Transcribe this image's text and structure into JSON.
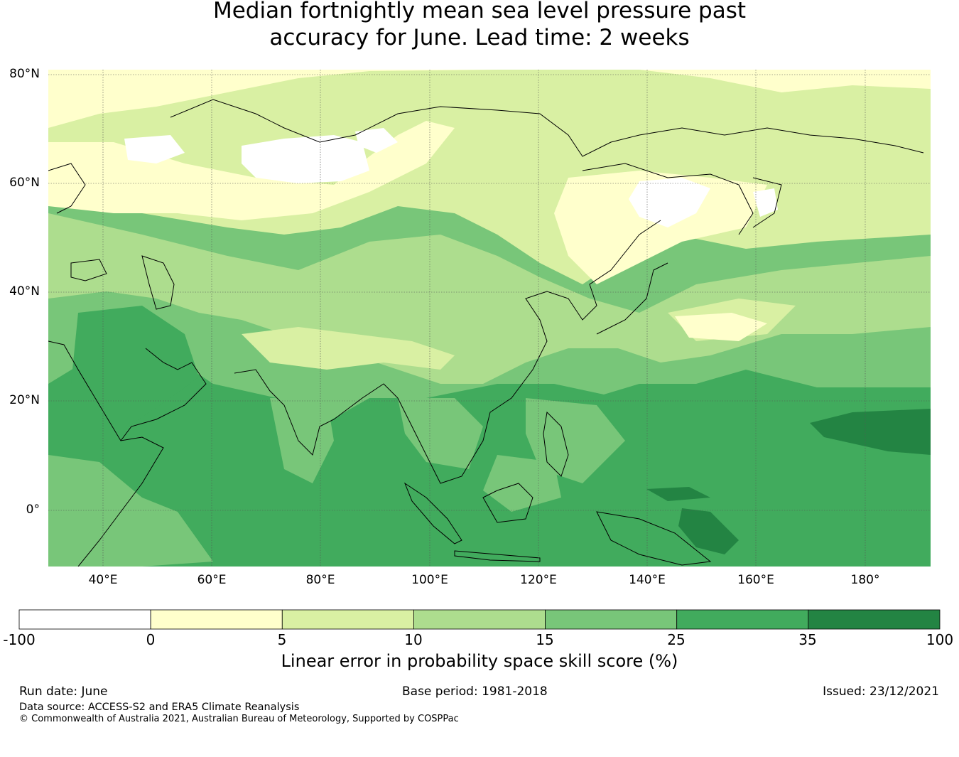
{
  "title": {
    "line1": "Median fortnightly mean sea level pressure past",
    "line2": "accuracy for June. Lead time: 2 weeks"
  },
  "map": {
    "lat_labels": [
      "80°N",
      "60°N",
      "40°N",
      "20°N",
      "0°"
    ],
    "lon_labels": [
      "40°E",
      "60°E",
      "80°E",
      "100°E",
      "120°E",
      "140°E",
      "160°E",
      "180°"
    ]
  },
  "colorbar": {
    "bins": [
      {
        "from": -100,
        "to": 0,
        "color": "#ffffff"
      },
      {
        "from": 0,
        "to": 5,
        "color": "#ffffcc"
      },
      {
        "from": 5,
        "to": 10,
        "color": "#d9f0a3"
      },
      {
        "from": 10,
        "to": 15,
        "color": "#addd8e"
      },
      {
        "from": 15,
        "to": 25,
        "color": "#78c679"
      },
      {
        "from": 25,
        "to": 35,
        "color": "#41ab5d"
      },
      {
        "from": 35,
        "to": 100,
        "color": "#238443"
      }
    ],
    "tick_labels": [
      "-100",
      "0",
      "5",
      "10",
      "15",
      "25",
      "35",
      "100"
    ],
    "label": "Linear error in probability space skill score (%)"
  },
  "footer": {
    "run_date": "Run date: June",
    "base_period": "Base period: 1981-2018",
    "issued": "Issued: 23/12/2021",
    "data_source": "Data source: ACCESS-S2 and ERA5 Climate Reanalysis",
    "copyright": "© Commonwealth of Australia 2021, Australian Bureau of Meteorology, Supported by COSPPac"
  }
}
